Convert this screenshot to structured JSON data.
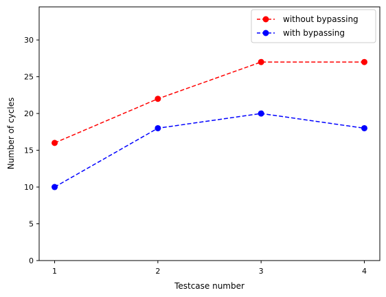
{
  "chart_data": {
    "type": "line",
    "title": "",
    "xlabel": "Testcase number",
    "ylabel": "Number of cycles",
    "x": [
      1,
      2,
      3,
      4
    ],
    "xticks": [
      1,
      2,
      3,
      4
    ],
    "yticks": [
      0,
      5,
      10,
      15,
      20,
      25,
      30
    ],
    "xlim": [
      0.85,
      4.15
    ],
    "ylim": [
      0,
      34.5
    ],
    "grid": false,
    "legend_position": "top-right",
    "series": [
      {
        "name": "without bypassing",
        "values": [
          16,
          22,
          27,
          27
        ],
        "color": "#ff0000",
        "line_style": "dashed",
        "marker": "circle"
      },
      {
        "name": "with bypassing",
        "values": [
          10,
          18,
          20,
          18
        ],
        "color": "#0000ff",
        "line_style": "dashed",
        "marker": "circle"
      }
    ]
  }
}
